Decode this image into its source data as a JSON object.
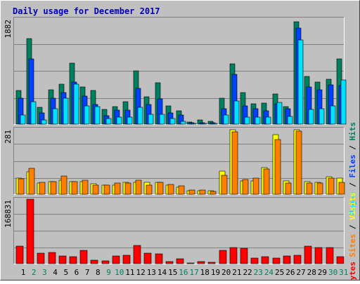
{
  "chart_data": {
    "type": "bar",
    "title": "Daily usage for December 2017",
    "categories": [
      "1",
      "2",
      "3",
      "4",
      "5",
      "6",
      "7",
      "8",
      "9",
      "10",
      "11",
      "12",
      "13",
      "14",
      "15",
      "16",
      "17",
      "18",
      "19",
      "20",
      "21",
      "22",
      "23",
      "24",
      "25",
      "26",
      "27",
      "28",
      "29",
      "30",
      "31"
    ],
    "weekend_days": [
      2,
      3,
      9,
      10,
      16,
      17,
      23,
      24,
      30,
      31
    ],
    "panels": [
      {
        "name": "hits-files-pages",
        "ymax_label": "1882",
        "ylim": [
          0,
          1882
        ],
        "legend": [
          "Pages",
          "Files",
          "Hits"
        ],
        "series": [
          {
            "name": "Hits",
            "color": "#008060",
            "values": [
              600,
              1530,
              300,
              620,
              720,
              1090,
              670,
              600,
              260,
              310,
              400,
              950,
              490,
              740,
              320,
              240,
              40,
              80,
              50,
              470,
              1080,
              560,
              370,
              380,
              540,
              310,
              1838,
              850,
              750,
              800,
              1170
            ]
          },
          {
            "name": "Files",
            "color": "#0040FF",
            "values": [
              460,
              1170,
              200,
              460,
              560,
              750,
              500,
              350,
              150,
              250,
              250,
              640,
              350,
              450,
              200,
              160,
              20,
              30,
              20,
              280,
              890,
              330,
              270,
              240,
              360,
              280,
              1720,
              660,
              610,
              700,
              690
            ]
          },
          {
            "name": "Pages",
            "color": "#00E0FF",
            "values": [
              160,
              400,
              80,
              280,
              470,
              720,
              320,
              310,
              100,
              130,
              130,
              300,
              180,
              170,
              100,
              50,
              10,
              15,
              10,
              160,
              410,
              120,
              120,
              130,
              390,
              140,
              1500,
              260,
              280,
              320,
              790
            ]
          }
        ]
      },
      {
        "name": "visits-sites",
        "ymax_label": "281",
        "ylim": [
          0,
          281
        ],
        "legend": [
          "Sites",
          "Visits"
        ],
        "series": [
          {
            "name": "Visits",
            "color": "#FFFF00",
            "values": [
              68,
              98,
              48,
              55,
              60,
              55,
              55,
              45,
              38,
              38,
              50,
              50,
              50,
              50,
              40,
              30,
              15,
              15,
              15,
              100,
              278,
              58,
              58,
              115,
              258,
              58,
              278,
              55,
              50,
              75,
              68
            ]
          },
          {
            "name": "Sites",
            "color": "#FF8000",
            "values": [
              65,
              113,
              50,
              55,
              78,
              55,
              60,
              40,
              38,
              48,
              48,
              60,
              40,
              50,
              43,
              35,
              17,
              17,
              12,
              83,
              270,
              62,
              68,
              110,
              235,
              48,
              272,
              48,
              48,
              68,
              50
            ]
          }
        ]
      },
      {
        "name": "kbytes",
        "ymax_label": "168831",
        "ylim": [
          0,
          168831
        ],
        "legend": [
          "KBytes"
        ],
        "series": [
          {
            "name": "KBytes",
            "color": "#FF0000",
            "values": [
              45000,
              168831,
              28000,
              30000,
              20000,
              18000,
              35000,
              10000,
              8000,
              20000,
              22000,
              48000,
              28000,
              25000,
              5000,
              12000,
              2000,
              5000,
              3000,
              35000,
              42000,
              40000,
              15000,
              18000,
              15000,
              20000,
              22000,
              45000,
              42000,
              42000,
              18000
            ]
          }
        ]
      }
    ]
  }
}
